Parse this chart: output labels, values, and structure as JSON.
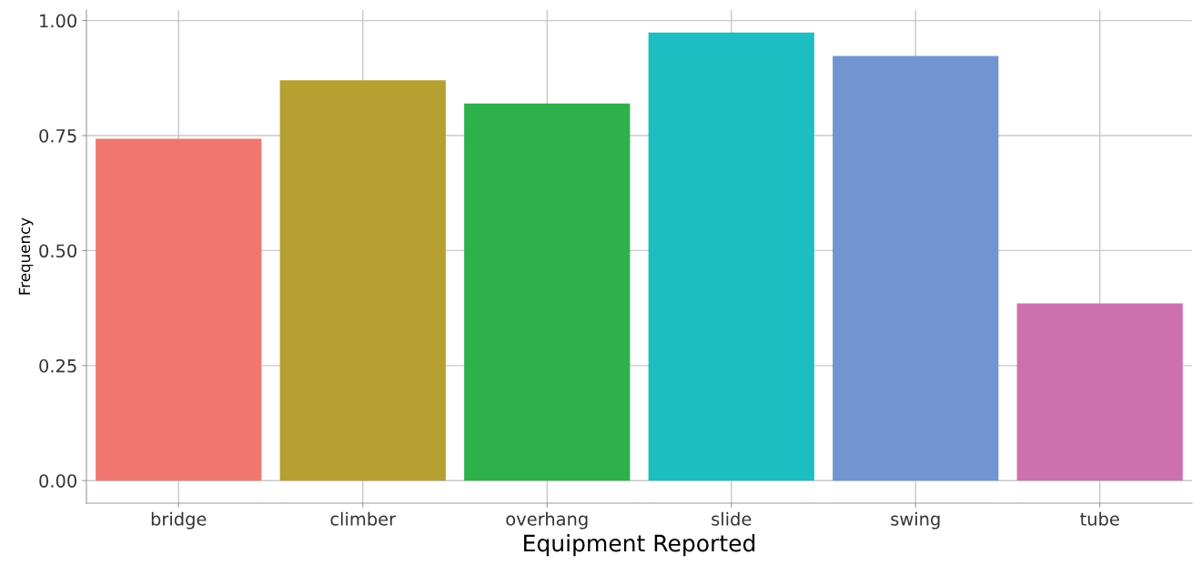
{
  "chart_data": {
    "type": "bar",
    "xlabel": "Equipment Reported",
    "ylabel": "Frequency",
    "categories": [
      "bridge",
      "climber",
      "overhang",
      "slide",
      "swing",
      "tube"
    ],
    "values": [
      0.743,
      0.87,
      0.82,
      0.974,
      0.923,
      0.385
    ],
    "colors": [
      "#f07670",
      "#b6a032",
      "#2eb04b",
      "#1dbec1",
      "#7195d0",
      "#cc70ae"
    ],
    "ylim": [
      -0.049,
      1.023
    ],
    "yticks": [
      {
        "value": 0,
        "label": "0.00"
      },
      {
        "value": 0.25,
        "label": "0.25"
      },
      {
        "value": 0.5,
        "label": "0.50"
      },
      {
        "value": 0.75,
        "label": "0.75"
      },
      {
        "value": 1.0,
        "label": "1.00"
      }
    ],
    "grid": true
  }
}
